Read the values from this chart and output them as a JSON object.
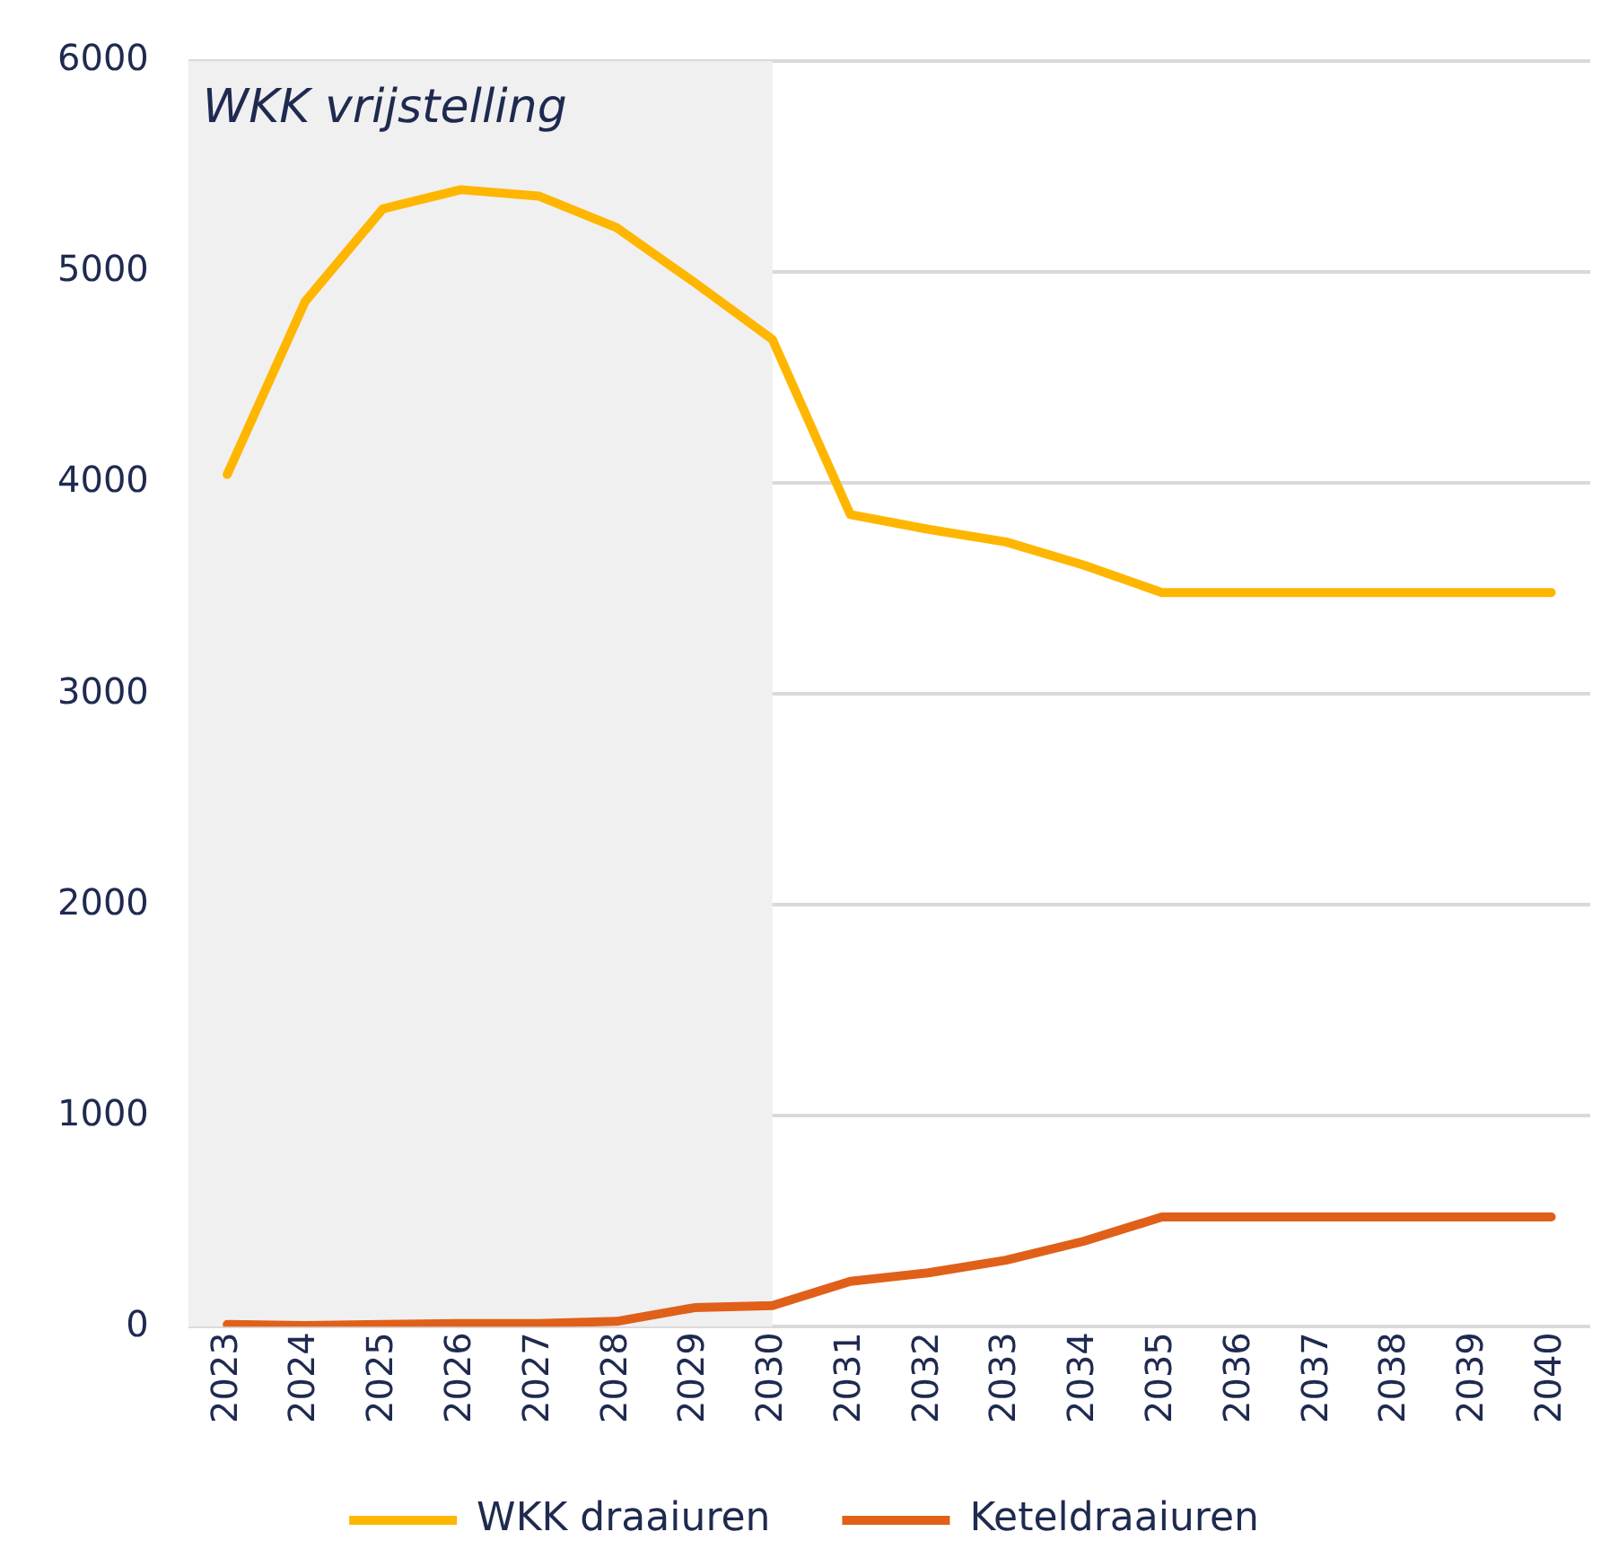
{
  "chart_data": {
    "type": "line",
    "x": [
      2023,
      2024,
      2025,
      2026,
      2027,
      2028,
      2029,
      2030,
      2031,
      2032,
      2033,
      2034,
      2035,
      2036,
      2037,
      2038,
      2039,
      2040
    ],
    "series": [
      {
        "name": "WKK draaiuren",
        "color": "#ffb600",
        "values": [
          4040,
          4860,
          5300,
          5390,
          5360,
          5210,
          4950,
          4680,
          3850,
          3780,
          3720,
          3610,
          3480,
          3480,
          3480,
          3480,
          3480,
          3480
        ]
      },
      {
        "name": "Keteldraaiuren",
        "color": "#e0601a",
        "values": [
          10,
          5,
          10,
          15,
          15,
          25,
          90,
          100,
          215,
          255,
          315,
          405,
          520,
          520,
          520,
          520,
          520,
          520
        ]
      }
    ],
    "xlim": [
      2022.5,
      2040.5
    ],
    "xticks": [
      2023,
      2024,
      2025,
      2026,
      2027,
      2028,
      2029,
      2030,
      2031,
      2032,
      2033,
      2034,
      2035,
      2036,
      2037,
      2038,
      2039,
      2040
    ],
    "ylim": [
      0,
      6000
    ],
    "yticks": [
      0,
      1000,
      2000,
      3000,
      4000,
      5000,
      6000
    ],
    "bands": [
      {
        "axis": "x",
        "from": 2022.5,
        "to": 2030,
        "label": "WKK vrijstelling",
        "color": "#f0f0f0"
      }
    ],
    "grid": "y",
    "legend": "bottom",
    "marker": "none",
    "line_style": "solid"
  }
}
